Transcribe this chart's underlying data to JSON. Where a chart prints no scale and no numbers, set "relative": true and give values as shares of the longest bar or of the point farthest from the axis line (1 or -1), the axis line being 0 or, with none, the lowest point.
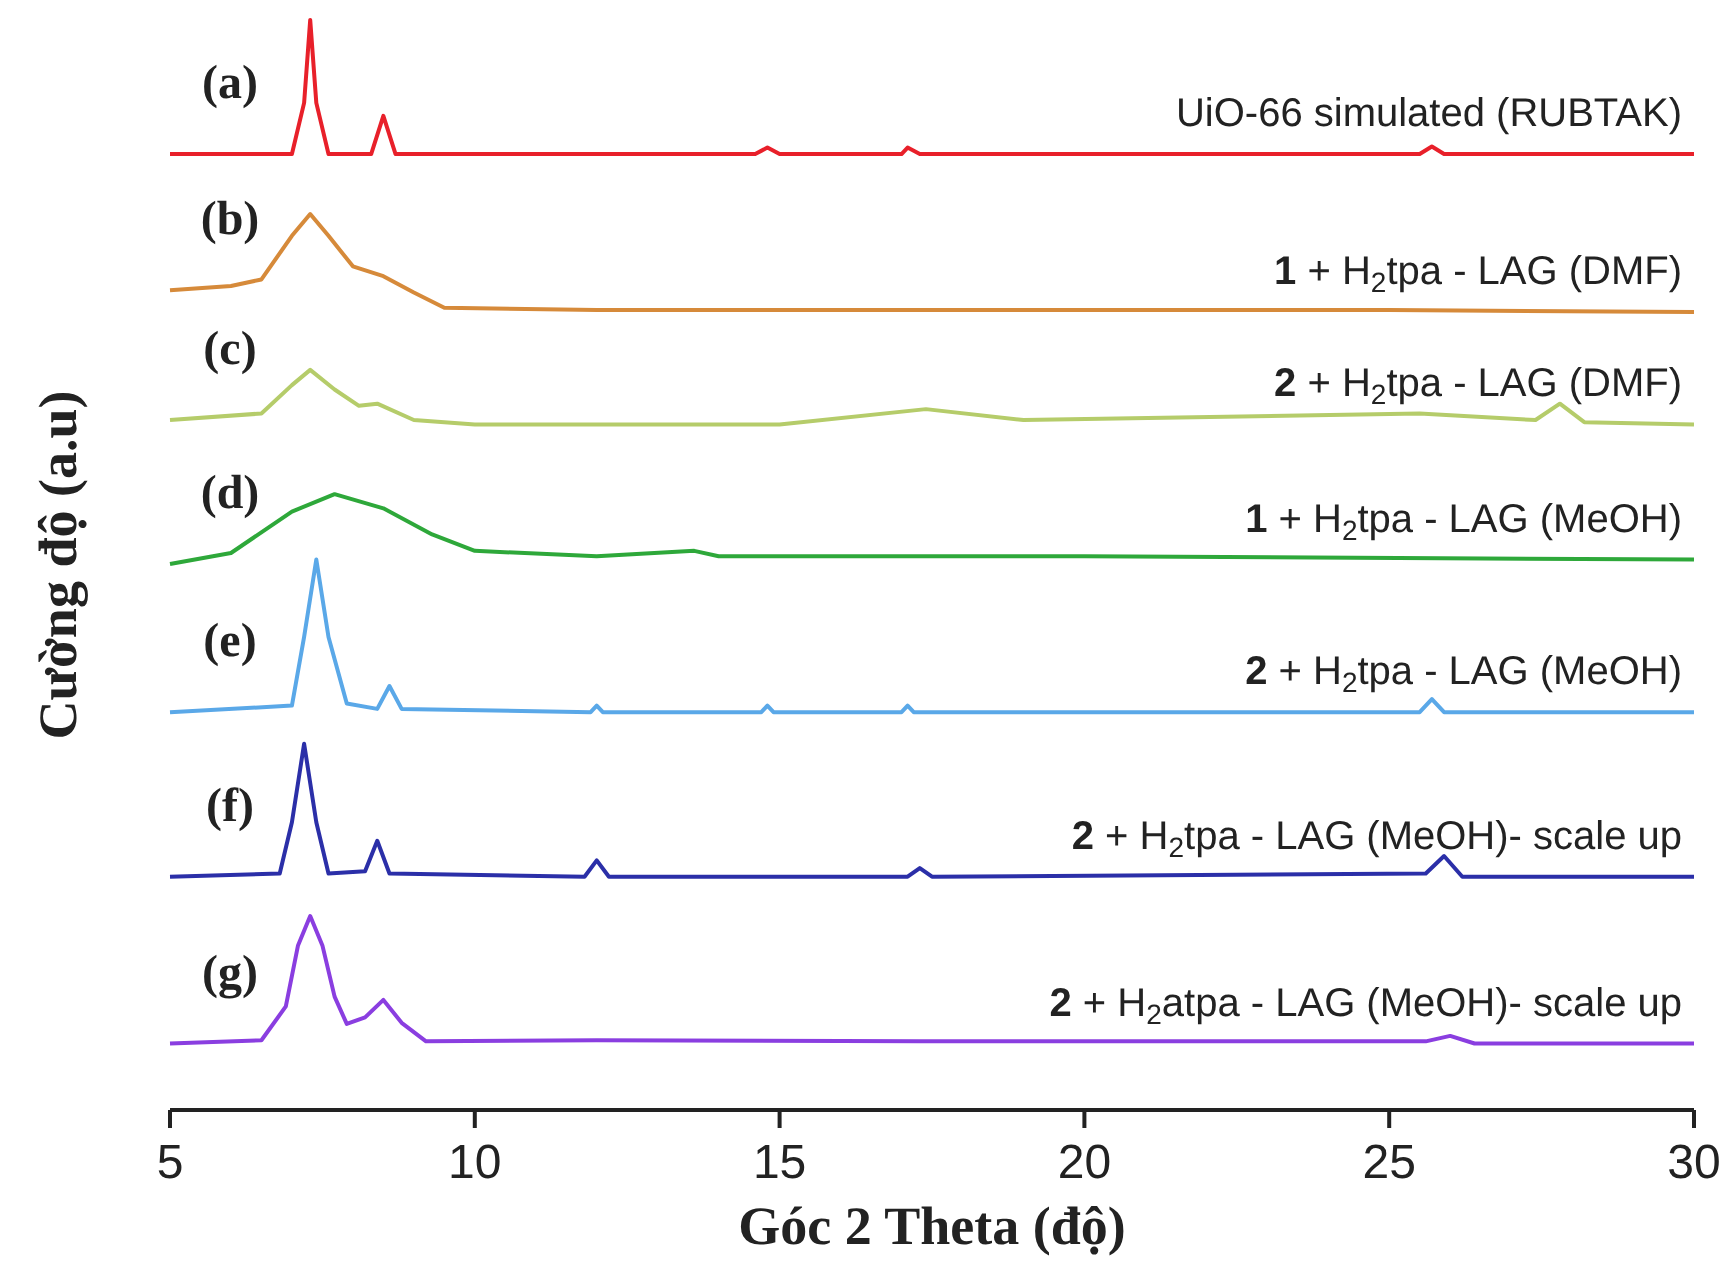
{
  "chart_data": {
    "type": "line",
    "relative": true,
    "xlabel": "Góc 2 Theta (độ)",
    "ylabel": "Cường độ (a.u)",
    "xlim": [
      5,
      30
    ],
    "xticks": [
      5,
      10,
      15,
      20,
      25,
      30
    ],
    "tick_labels": "x",
    "grid": false,
    "marker": "none",
    "line_style": "solid",
    "series": [
      {
        "name": "UiO-66 simulated (RUBTAK)",
        "color": "#e8202a",
        "x": [
          5,
          7.0,
          7.2,
          7.3,
          7.4,
          7.6,
          8.3,
          8.5,
          8.7,
          14.6,
          14.8,
          15.0,
          17.0,
          17.1,
          17.3,
          25.5,
          25.7,
          25.9,
          30
        ],
        "values": [
          0.877,
          0.877,
          0.924,
          1.0,
          0.924,
          0.877,
          0.877,
          0.912,
          0.877,
          0.877,
          0.883,
          0.877,
          0.877,
          0.883,
          0.877,
          0.877,
          0.884,
          0.877,
          0.877
        ]
      },
      {
        "name": "1 + H$_{2}$tpa - LAG (DMF)",
        "color": "#d68a3a",
        "x": [
          5,
          6,
          6.5,
          7.0,
          7.3,
          7.6,
          8.0,
          8.5,
          9.0,
          9.5,
          12,
          20,
          25,
          30
        ],
        "values": [
          0.752,
          0.756,
          0.762,
          0.802,
          0.822,
          0.802,
          0.774,
          0.765,
          0.75,
          0.736,
          0.734,
          0.734,
          0.734,
          0.732
        ]
      },
      {
        "name": "2 + H$_{2}$tpa - LAG (DMF)",
        "color": "#b5cc6a",
        "x": [
          5,
          6.5,
          7.0,
          7.3,
          7.7,
          8.1,
          8.4,
          9,
          10,
          15,
          17.4,
          19,
          25.5,
          27.4,
          27.8,
          28.2,
          30
        ],
        "values": [
          0.633,
          0.639,
          0.665,
          0.679,
          0.661,
          0.646,
          0.648,
          0.633,
          0.629,
          0.629,
          0.643,
          0.633,
          0.639,
          0.633,
          0.648,
          0.631,
          0.629
        ]
      },
      {
        "name": "1 + H$_{2}$tpa - LAG (MeOH)",
        "color": "#2ea83a",
        "x": [
          5,
          6,
          7.0,
          7.7,
          8.5,
          9.3,
          10,
          12,
          13.6,
          14,
          20,
          30
        ],
        "values": [
          0.501,
          0.511,
          0.549,
          0.565,
          0.552,
          0.528,
          0.513,
          0.508,
          0.513,
          0.508,
          0.508,
          0.505
        ]
      },
      {
        "name": "2 + H$_{2}$tpa - LAG (MeOH)",
        "color": "#5aa8e8",
        "x": [
          5,
          7.0,
          7.2,
          7.4,
          7.6,
          7.9,
          8.4,
          8.6,
          8.8,
          11.9,
          12.0,
          12.1,
          14.7,
          14.8,
          14.9,
          17.0,
          17.1,
          17.2,
          25.5,
          25.7,
          25.9,
          30
        ],
        "values": [
          0.365,
          0.371,
          0.434,
          0.505,
          0.434,
          0.373,
          0.368,
          0.389,
          0.368,
          0.365,
          0.371,
          0.365,
          0.365,
          0.371,
          0.365,
          0.365,
          0.371,
          0.365,
          0.365,
          0.377,
          0.365,
          0.365
        ]
      },
      {
        "name": "2 + H$_{2}$tpa - LAG (MeOH)- scale up",
        "color": "#2b2fa8",
        "x": [
          5,
          6.8,
          7.0,
          7.2,
          7.4,
          7.6,
          8.2,
          8.4,
          8.6,
          11.8,
          12.0,
          12.2,
          17.1,
          17.3,
          17.5,
          25.6,
          25.9,
          26.2,
          30
        ],
        "values": [
          0.214,
          0.217,
          0.264,
          0.336,
          0.264,
          0.217,
          0.219,
          0.247,
          0.217,
          0.214,
          0.229,
          0.214,
          0.214,
          0.222,
          0.214,
          0.217,
          0.233,
          0.214,
          0.214
        ]
      },
      {
        "name": "2 + H$_{2}$atpa - LAG (MeOH)- scale up",
        "color": "#8a3ee0",
        "x": [
          5,
          6.5,
          6.9,
          7.1,
          7.3,
          7.5,
          7.7,
          7.9,
          8.2,
          8.5,
          8.8,
          9.2,
          12,
          17.3,
          25.6,
          26.0,
          26.4,
          30
        ],
        "values": [
          0.061,
          0.064,
          0.095,
          0.151,
          0.178,
          0.151,
          0.104,
          0.079,
          0.085,
          0.101,
          0.08,
          0.063,
          0.064,
          0.063,
          0.063,
          0.068,
          0.061,
          0.061
        ]
      }
    ],
    "annotations": [
      "(a)",
      "(b)",
      "(c)",
      "(d)",
      "(e)",
      "(f)",
      "(g)"
    ]
  }
}
